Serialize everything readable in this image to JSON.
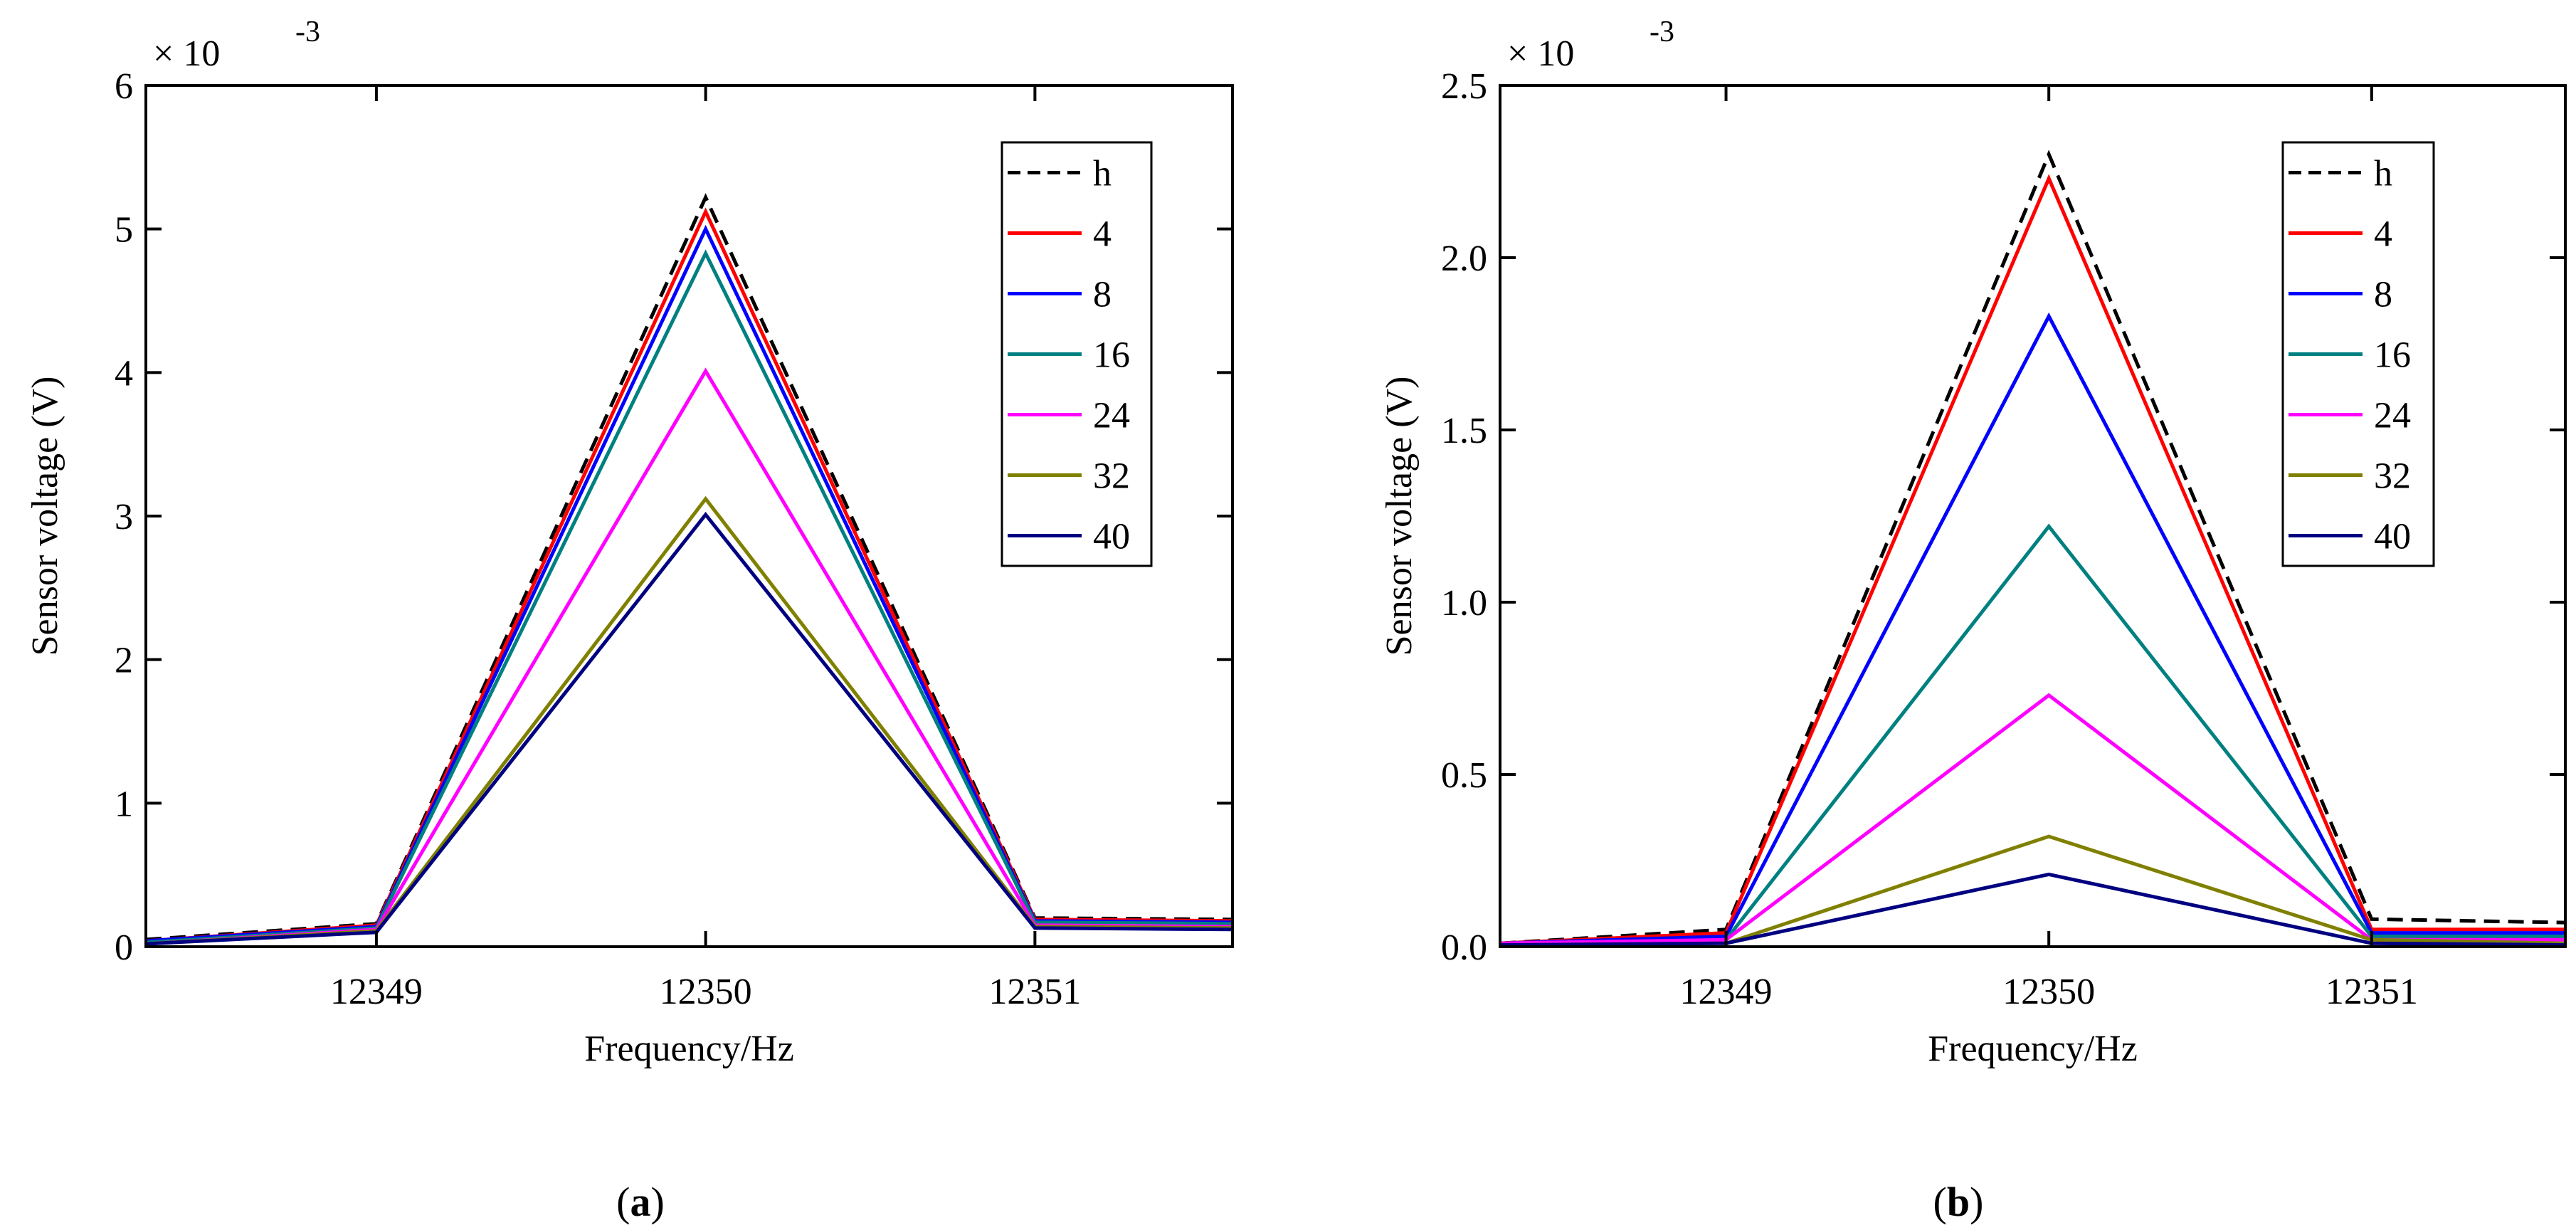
{
  "colors": {
    "h": "#000000",
    "4": "#ff0000",
    "8": "#0000ff",
    "16": "#008080",
    "24": "#ff00ff",
    "32": "#808000",
    "40": "#000080"
  },
  "chart_data": [
    {
      "type": "line",
      "panel": "(a)",
      "panel_letter": "a",
      "xlabel": "Frequency/Hz",
      "ylabel": "Sensor voltage (V)",
      "xlim": [
        12348.3,
        12351.6
      ],
      "ylim": [
        0,
        6
      ],
      "xticks": [
        12349,
        12350,
        12351
      ],
      "xtick_labels": [
        "12349",
        "12350",
        "12351"
      ],
      "yticks": [
        0,
        1,
        2,
        3,
        4,
        5,
        6
      ],
      "ytick_labels": [
        "0",
        "1",
        "2",
        "3",
        "4",
        "5",
        "6"
      ],
      "multiplier": {
        "base": "× 10",
        "exp": "-3"
      },
      "legend_position": "top-right",
      "x": [
        12348.3,
        12349,
        12350,
        12351,
        12351.6
      ],
      "series": [
        {
          "name": "h",
          "dashed": true,
          "values": [
            0.05,
            0.16,
            5.22,
            0.2,
            0.19
          ]
        },
        {
          "name": "4",
          "dashed": false,
          "values": [
            0.04,
            0.15,
            5.12,
            0.19,
            0.18
          ]
        },
        {
          "name": "8",
          "dashed": false,
          "values": [
            0.04,
            0.14,
            5.0,
            0.18,
            0.17
          ]
        },
        {
          "name": "16",
          "dashed": false,
          "values": [
            0.03,
            0.13,
            4.83,
            0.17,
            0.16
          ]
        },
        {
          "name": "24",
          "dashed": false,
          "values": [
            0.02,
            0.12,
            4.01,
            0.15,
            0.14
          ]
        },
        {
          "name": "32",
          "dashed": false,
          "values": [
            0.02,
            0.11,
            3.12,
            0.14,
            0.13
          ]
        },
        {
          "name": "40",
          "dashed": false,
          "values": [
            0.02,
            0.1,
            3.01,
            0.13,
            0.12
          ]
        }
      ]
    },
    {
      "type": "line",
      "panel": "(b)",
      "panel_letter": "b",
      "xlabel": "Frequency/Hz",
      "ylabel": "Sensor voltage (V)",
      "xlim": [
        12348.3,
        12351.6
      ],
      "ylim": [
        0,
        2.5
      ],
      "xticks": [
        12349,
        12350,
        12351
      ],
      "xtick_labels": [
        "12349",
        "12350",
        "12351"
      ],
      "yticks": [
        0,
        0.5,
        1.0,
        1.5,
        2.0,
        2.5
      ],
      "ytick_labels": [
        "0.0",
        "0.5",
        "1.0",
        "1.5",
        "2.0",
        "2.5"
      ],
      "multiplier": {
        "base": "× 10",
        "exp": "-3"
      },
      "legend_position": "top-right",
      "x": [
        12348.3,
        12349,
        12350,
        12351,
        12351.6
      ],
      "series": [
        {
          "name": "h",
          "dashed": true,
          "values": [
            0.01,
            0.05,
            2.3,
            0.08,
            0.07
          ]
        },
        {
          "name": "4",
          "dashed": false,
          "values": [
            0.01,
            0.04,
            2.23,
            0.05,
            0.05
          ]
        },
        {
          "name": "8",
          "dashed": false,
          "values": [
            0.01,
            0.03,
            1.83,
            0.04,
            0.04
          ]
        },
        {
          "name": "16",
          "dashed": false,
          "values": [
            0.01,
            0.02,
            1.22,
            0.03,
            0.03
          ]
        },
        {
          "name": "24",
          "dashed": false,
          "values": [
            0.01,
            0.02,
            0.73,
            0.02,
            0.02
          ]
        },
        {
          "name": "32",
          "dashed": false,
          "values": [
            0.005,
            0.01,
            0.32,
            0.02,
            0.01
          ]
        },
        {
          "name": "40",
          "dashed": false,
          "values": [
            0.005,
            0.01,
            0.21,
            0.01,
            0.005
          ]
        }
      ]
    }
  ]
}
